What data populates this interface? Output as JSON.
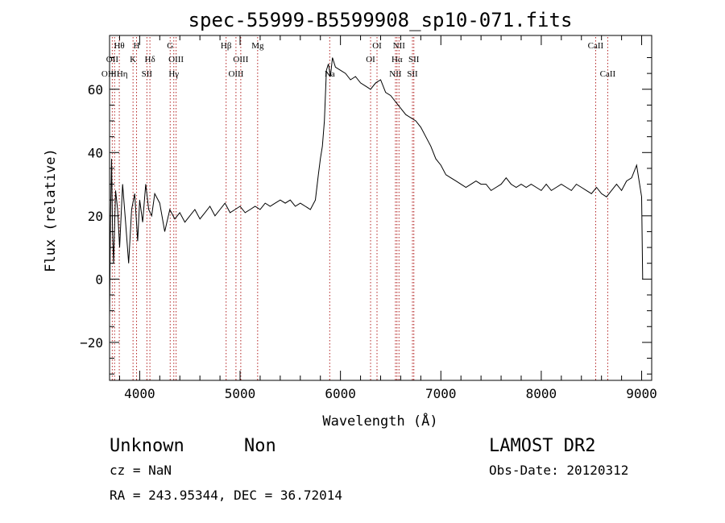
{
  "chart_data": {
    "type": "line",
    "title": "spec-55999-B5599908_sp10-071.fits",
    "xlabel": "Wavelength (Å)",
    "ylabel": "Flux (relative)",
    "xlim": [
      3700,
      9100
    ],
    "ylim": [
      -32,
      77
    ],
    "x_ticks": [
      4000,
      5000,
      6000,
      7000,
      8000,
      9000
    ],
    "x_tick_labels": [
      "4000",
      "5000",
      "6000",
      "7000",
      "8000",
      "9000"
    ],
    "y_ticks": [
      -20,
      0,
      20,
      40,
      60
    ],
    "y_tick_labels": [
      "−20",
      "0",
      "20",
      "40",
      "60"
    ],
    "series": [
      {
        "x": [
          3700,
          3710,
          3720,
          3730,
          3740,
          3760,
          3780,
          3800,
          3830,
          3860,
          3890,
          3920,
          3950,
          3980,
          4000,
          4030,
          4060,
          4090,
          4120,
          4150,
          4200,
          4250,
          4300,
          4350,
          4400,
          4450,
          4500,
          4550,
          4600,
          4650,
          4700,
          4750,
          4800,
          4850,
          4900,
          4950,
          5000,
          5050,
          5100,
          5150,
          5200,
          5250,
          5300,
          5350,
          5400,
          5450,
          5500,
          5550,
          5600,
          5650,
          5700,
          5750,
          5780,
          5800,
          5820,
          5840,
          5860,
          5880,
          5900,
          5920,
          5950,
          6000,
          6050,
          6100,
          6150,
          6200,
          6250,
          6300,
          6350,
          6400,
          6450,
          6500,
          6550,
          6600,
          6650,
          6700,
          6750,
          6800,
          6850,
          6900,
          6950,
          7000,
          7050,
          7100,
          7150,
          7200,
          7250,
          7300,
          7350,
          7400,
          7450,
          7500,
          7550,
          7600,
          7650,
          7700,
          7750,
          7800,
          7850,
          7900,
          7950,
          8000,
          8050,
          8100,
          8150,
          8200,
          8250,
          8300,
          8350,
          8400,
          8450,
          8500,
          8550,
          8600,
          8650,
          8700,
          8750,
          8800,
          8850,
          8900,
          8950,
          8980,
          9000,
          9010
        ],
        "y": [
          -12,
          20,
          38,
          15,
          5,
          28,
          22,
          10,
          30,
          18,
          5,
          22,
          27,
          12,
          25,
          18,
          30,
          22,
          20,
          27,
          24,
          15,
          22,
          19,
          21,
          18,
          20,
          22,
          19,
          21,
          23,
          20,
          22,
          24,
          21,
          22,
          23,
          21,
          22,
          23,
          22,
          24,
          23,
          24,
          25,
          24,
          25,
          23,
          24,
          23,
          22,
          25,
          33,
          38,
          42,
          50,
          66,
          68,
          64,
          70,
          67,
          66,
          65,
          63,
          64,
          62,
          61,
          60,
          62,
          63,
          59,
          58,
          56,
          54,
          52,
          51,
          50,
          48,
          45,
          42,
          38,
          36,
          33,
          32,
          31,
          30,
          29,
          30,
          31,
          30,
          30,
          28,
          29,
          30,
          32,
          30,
          29,
          30,
          29,
          30,
          29,
          28,
          30,
          28,
          29,
          30,
          29,
          28,
          30,
          29,
          28,
          27,
          29,
          27,
          26,
          28,
          30,
          28,
          31,
          32,
          36,
          30,
          26,
          0
        ]
      }
    ],
    "line_markers": [
      {
        "x": 3727,
        "labels": [
          "OII"
        ],
        "row": 2
      },
      {
        "x": 3750,
        "labels": [
          "OIII",
          "Hη"
        ],
        "row": 3
      },
      {
        "x": 3797,
        "labels": [
          "Hθ"
        ],
        "row": 1
      },
      {
        "x": 3934,
        "labels": [
          "K"
        ],
        "row": 2
      },
      {
        "x": 3969,
        "labels": [
          "H"
        ],
        "row": 1
      },
      {
        "x": 4072,
        "labels": [
          "SII"
        ],
        "row": 3
      },
      {
        "x": 4102,
        "labels": [
          "Hδ"
        ],
        "row": 2
      },
      {
        "x": 4304,
        "labels": [
          "G"
        ],
        "row": 1
      },
      {
        "x": 4340,
        "labels": [
          "Hγ"
        ],
        "row": 3
      },
      {
        "x": 4363,
        "labels": [
          "OIII"
        ],
        "row": 2
      },
      {
        "x": 4861,
        "labels": [
          "Hβ"
        ],
        "row": 1
      },
      {
        "x": 4959,
        "labels": [
          "OIII"
        ],
        "row": 3
      },
      {
        "x": 5007,
        "labels": [
          "OIII"
        ],
        "row": 2
      },
      {
        "x": 5175,
        "labels": [
          "Mg"
        ],
        "row": 1
      },
      {
        "x": 5893,
        "labels": [
          "Na"
        ],
        "row": 3
      },
      {
        "x": 6300,
        "labels": [
          "OI"
        ],
        "row": 2
      },
      {
        "x": 6364,
        "labels": [
          "OI"
        ],
        "row": 1
      },
      {
        "x": 6548,
        "labels": [
          "NII"
        ],
        "row": 3
      },
      {
        "x": 6563,
        "labels": [
          "Hα"
        ],
        "row": 2
      },
      {
        "x": 6583,
        "labels": [
          "NII"
        ],
        "row": 1
      },
      {
        "x": 6717,
        "labels": [
          "SII"
        ],
        "row": 3
      },
      {
        "x": 6731,
        "labels": [
          "SII"
        ],
        "row": 2
      },
      {
        "x": 8542,
        "labels": [
          "CaII"
        ],
        "row": 1
      },
      {
        "x": 8662,
        "labels": [
          "CaII"
        ],
        "row": 3
      }
    ]
  },
  "info": {
    "class": "Unknown",
    "subclass": "Non",
    "survey": "LAMOST DR2",
    "cz": "cz = NaN",
    "obs_date": "Obs-Date: 20120312",
    "coords": "RA = 243.95344, DEC =  36.72014"
  }
}
